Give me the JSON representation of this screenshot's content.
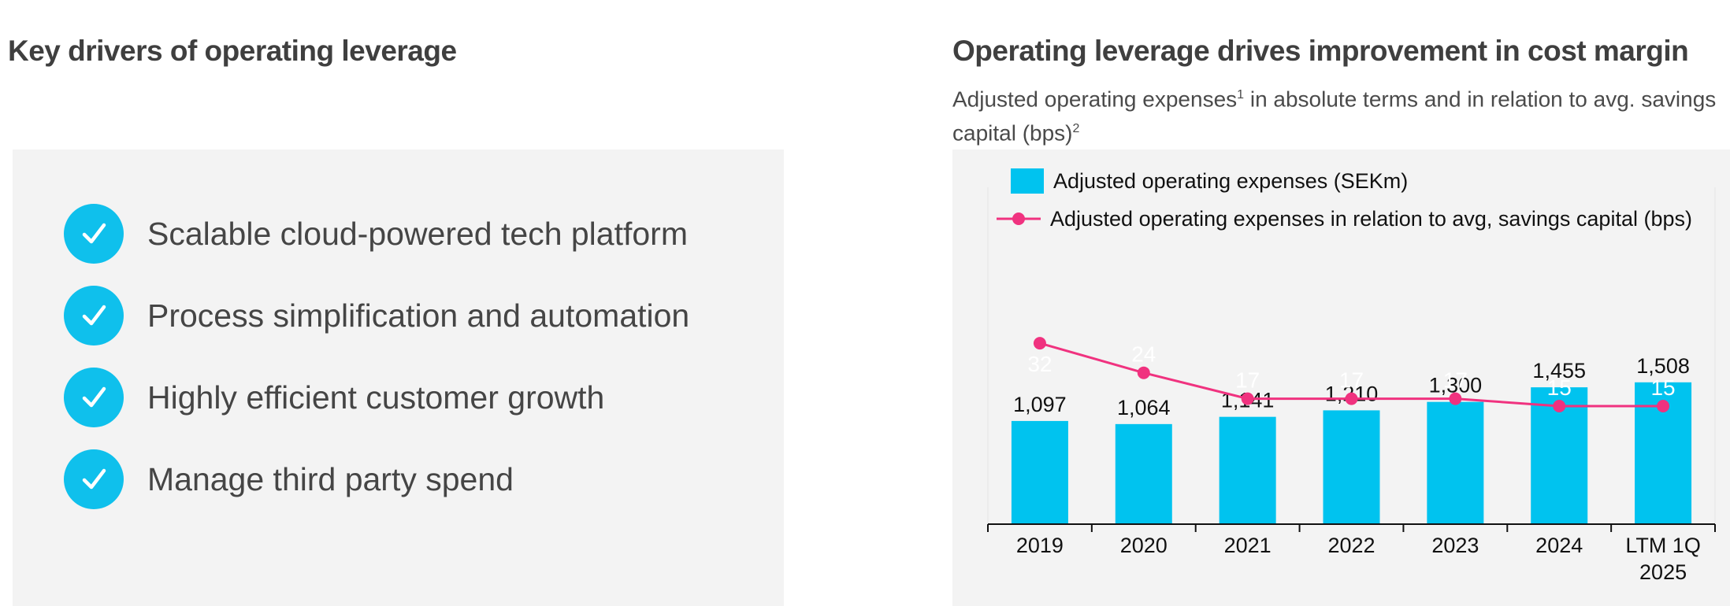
{
  "left": {
    "title": "Key drivers of operating leverage",
    "drivers": [
      {
        "label": "Scalable cloud-powered tech platform",
        "icon": "check-icon"
      },
      {
        "label": "Process simplification and automation",
        "icon": "check-icon"
      },
      {
        "label": "Highly efficient customer growth",
        "icon": "check-icon"
      },
      {
        "label": "Manage third party spend",
        "icon": "check-icon"
      }
    ]
  },
  "right": {
    "title": "Operating leverage drives improvement in cost margin",
    "subtitle_a": "Adjusted operating expenses",
    "subtitle_sup1": "1",
    "subtitle_b": " in absolute terms and in relation to avg. savings capital (bps)",
    "subtitle_sup2": "2"
  },
  "colors": {
    "bar": "#00c3ef",
    "line": "#f0327f",
    "check": "#0fc0ec"
  },
  "chart_data": {
    "type": "bar",
    "categories": [
      "2019",
      "2020",
      "2021",
      "2022",
      "2023",
      "2024",
      "LTM 1Q 2025"
    ],
    "series": [
      {
        "name": "Adjusted operating expenses (SEKm)",
        "type": "bar",
        "values": [
          1097,
          1064,
          1141,
          1210,
          1300,
          1455,
          1508
        ],
        "labels": [
          "1,097",
          "1,064",
          "1,141",
          "1,210",
          "1,300",
          "1,455",
          "1,508"
        ]
      },
      {
        "name": "Adjusted operating expenses in relation to avg, savings capital (bps)",
        "type": "line",
        "values": [
          32,
          24,
          17,
          17,
          17,
          15,
          15
        ],
        "labels": [
          "32",
          "24",
          "17",
          "17",
          "17",
          "15",
          "15"
        ]
      }
    ],
    "legend": "top-left",
    "grid": false
  }
}
